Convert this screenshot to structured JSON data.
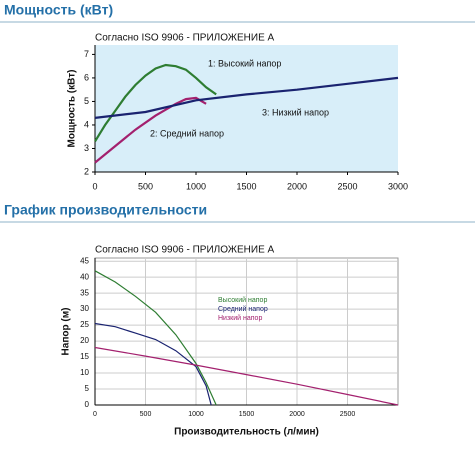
{
  "headings": [
    "Мощность (кВт)",
    "График производительности"
  ],
  "chart_data": [
    {
      "type": "line",
      "subtitle": "Согласно ISO 9906 - ПРИЛОЖЕНИЕ А",
      "y_label": "Мощность (кВт)",
      "xlim": [
        0,
        3000
      ],
      "xticks": [
        0,
        500,
        1000,
        1500,
        2000,
        2500,
        3000
      ],
      "ylim": [
        2,
        7.4
      ],
      "yticks": [
        2,
        3,
        4,
        5,
        6,
        7
      ],
      "grid": false,
      "plot_background": "#d8eef9",
      "series": [
        {
          "name": "1: Высокий напор",
          "color": "#2e7d32",
          "x": [
            0,
            100,
            200,
            300,
            400,
            500,
            600,
            700,
            800,
            900,
            1000,
            1100,
            1200
          ],
          "values": [
            3.3,
            4.0,
            4.6,
            5.2,
            5.7,
            6.1,
            6.4,
            6.55,
            6.5,
            6.35,
            6.0,
            5.6,
            5.3
          ]
        },
        {
          "name": "2: Средний напор",
          "color": "#a3206e",
          "x": [
            0,
            200,
            400,
            600,
            800,
            900,
            1000,
            1100
          ],
          "values": [
            2.4,
            3.1,
            3.8,
            4.4,
            4.9,
            5.1,
            5.15,
            4.9
          ]
        },
        {
          "name": "3: Низкий напор",
          "color": "#1a2370",
          "x": [
            0,
            500,
            1000,
            1500,
            2000,
            2500,
            3000
          ],
          "values": [
            4.3,
            4.55,
            5.05,
            5.3,
            5.5,
            5.75,
            6.0
          ]
        }
      ]
    },
    {
      "type": "line",
      "subtitle": "Согласно ISO 9906 - ПРИЛОЖЕНИЕ А",
      "y_label": "Напор (м)",
      "x_label": "Производительность (л/мин)",
      "xlim": [
        0,
        3000
      ],
      "xticks": [
        0,
        500,
        1000,
        1500,
        2000,
        2500
      ],
      "ylim": [
        0,
        46
      ],
      "yticks": [
        0,
        5,
        10,
        15,
        20,
        25,
        30,
        35,
        40,
        45
      ],
      "grid": true,
      "plot_background": "#ffffff",
      "series": [
        {
          "name": "Высокий напор",
          "color": "#2e7d32",
          "x": [
            0,
            200,
            400,
            600,
            800,
            1000,
            1100,
            1200
          ],
          "values": [
            42,
            38.5,
            34,
            29,
            22,
            13,
            7,
            0
          ]
        },
        {
          "name": "Средний напор",
          "color": "#1a2370",
          "x": [
            0,
            200,
            400,
            600,
            800,
            1000,
            1100,
            1150
          ],
          "values": [
            25.5,
            24.5,
            22.5,
            20.5,
            17,
            12,
            6,
            0
          ]
        },
        {
          "name": "Низкий напор",
          "color": "#a3206e",
          "x": [
            0,
            500,
            1000,
            1500,
            2000,
            2500,
            3000
          ],
          "values": [
            18,
            15.3,
            12.5,
            9.5,
            6.5,
            3.3,
            0
          ]
        }
      ]
    }
  ]
}
